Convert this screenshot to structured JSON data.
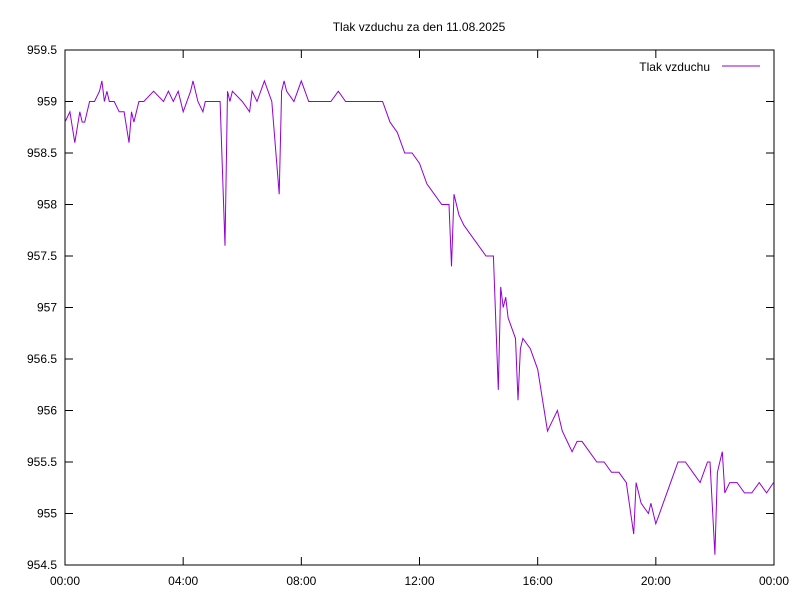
{
  "chart_data": {
    "type": "line",
    "title": "Tlak vzduchu za den 11.08.2025",
    "xlabel": "",
    "ylabel": "",
    "xlim": [
      "00:00",
      "24:00"
    ],
    "ylim": [
      954.5,
      959.5
    ],
    "x_ticks": [
      "00:00",
      "04:00",
      "08:00",
      "12:00",
      "16:00",
      "20:00",
      "00:00"
    ],
    "y_ticks": [
      "954.5",
      "955",
      "955.5",
      "956",
      "956.5",
      "957",
      "957.5",
      "958",
      "958.5",
      "959",
      "959.5"
    ],
    "grid": false,
    "legend_position": "top-right",
    "series": [
      {
        "name": "Tlak vzduchu",
        "color": "#9400d3",
        "x": [
          "00:00",
          "00:10",
          "00:20",
          "00:30",
          "00:35",
          "00:40",
          "00:50",
          "01:00",
          "01:10",
          "01:15",
          "01:20",
          "01:25",
          "01:30",
          "01:40",
          "01:50",
          "02:00",
          "02:10",
          "02:15",
          "02:20",
          "02:25",
          "02:30",
          "02:40",
          "03:00",
          "03:20",
          "03:30",
          "03:40",
          "03:50",
          "04:00",
          "04:15",
          "04:20",
          "04:30",
          "04:40",
          "04:45",
          "05:00",
          "05:15",
          "05:25",
          "05:30",
          "05:35",
          "05:40",
          "06:00",
          "06:15",
          "06:20",
          "06:30",
          "06:45",
          "07:00",
          "07:15",
          "07:20",
          "07:25",
          "07:30",
          "07:45",
          "08:00",
          "08:15",
          "08:30",
          "08:45",
          "09:00",
          "09:15",
          "09:30",
          "09:45",
          "10:00",
          "10:30",
          "10:45",
          "11:00",
          "11:15",
          "11:30",
          "11:45",
          "12:00",
          "12:15",
          "12:30",
          "12:45",
          "13:00",
          "13:05",
          "13:10",
          "13:20",
          "13:30",
          "13:45",
          "14:00",
          "14:15",
          "14:30",
          "14:40",
          "14:45",
          "14:50",
          "14:55",
          "15:00",
          "15:15",
          "15:20",
          "15:25",
          "15:30",
          "15:45",
          "16:00",
          "16:20",
          "16:30",
          "16:40",
          "16:50",
          "17:00",
          "17:10",
          "17:20",
          "17:30",
          "17:45",
          "18:00",
          "18:15",
          "18:30",
          "18:45",
          "19:00",
          "19:15",
          "19:20",
          "19:30",
          "19:45",
          "19:50",
          "20:00",
          "20:15",
          "20:30",
          "20:45",
          "21:00",
          "21:15",
          "21:30",
          "21:45",
          "21:50",
          "22:00",
          "22:05",
          "22:10",
          "22:15",
          "22:20",
          "22:30",
          "22:45",
          "23:00",
          "23:15",
          "23:30",
          "23:45",
          "23:59"
        ],
        "y": [
          958.8,
          958.9,
          958.6,
          958.9,
          958.8,
          958.8,
          959.0,
          959.0,
          959.1,
          959.2,
          959.0,
          959.1,
          959.0,
          959.0,
          958.9,
          958.9,
          958.6,
          958.9,
          958.8,
          958.9,
          959.0,
          959.0,
          959.1,
          959.0,
          959.1,
          959.0,
          959.1,
          958.9,
          959.1,
          959.2,
          959.0,
          958.9,
          959.0,
          959.0,
          959.0,
          957.6,
          959.1,
          959.0,
          959.1,
          959.0,
          958.9,
          959.1,
          959.0,
          959.2,
          959.0,
          958.1,
          959.1,
          959.2,
          959.1,
          959.0,
          959.2,
          959.0,
          959.0,
          959.0,
          959.0,
          959.1,
          959.0,
          959.0,
          959.0,
          959.0,
          959.0,
          958.8,
          958.7,
          958.5,
          958.5,
          958.4,
          958.2,
          958.1,
          958.0,
          958.0,
          957.4,
          958.1,
          957.9,
          957.8,
          957.7,
          957.6,
          957.5,
          957.5,
          956.2,
          957.2,
          957.0,
          957.1,
          956.9,
          956.7,
          956.1,
          956.6,
          956.7,
          956.6,
          956.4,
          955.8,
          955.9,
          956.0,
          955.8,
          955.7,
          955.6,
          955.7,
          955.7,
          955.6,
          955.5,
          955.5,
          955.4,
          955.4,
          955.3,
          954.8,
          955.3,
          955.1,
          955.0,
          955.1,
          954.9,
          955.1,
          955.3,
          955.5,
          955.5,
          955.4,
          955.3,
          955.5,
          955.5,
          954.6,
          955.4,
          955.5,
          955.6,
          955.2,
          955.3,
          955.3,
          955.2,
          955.2,
          955.3,
          955.2,
          955.3
        ]
      }
    ]
  }
}
